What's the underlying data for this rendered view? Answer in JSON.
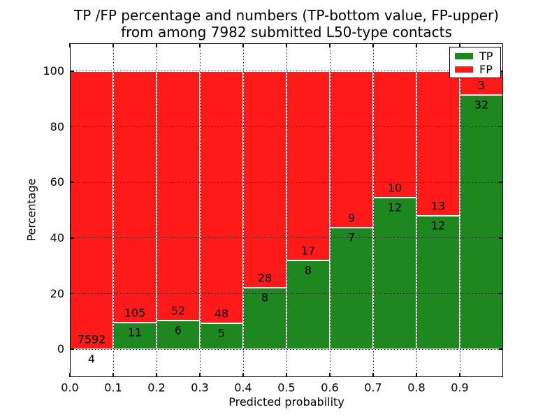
{
  "title": {
    "line1": "TP /FP percentage and numbers (TP-bottom value, FP-upper)",
    "line2": "from among 7982 submitted L50-type contacts"
  },
  "chart_data": {
    "type": "bar",
    "stacked": true,
    "title": "TP /FP percentage and numbers (TP-bottom value, FP-upper) from among 7982 submitted L50-type contacts",
    "xlabel": "Predicted probability",
    "ylabel": "Percentage",
    "xlim": [
      0.0,
      1.0
    ],
    "ylim": [
      -10,
      110
    ],
    "xticks": [
      0.0,
      0.1,
      0.2,
      0.3,
      0.4,
      0.5,
      0.6,
      0.7,
      0.8,
      0.9
    ],
    "xtick_labels": [
      "0.0",
      "0.1",
      "0.2",
      "0.3",
      "0.4",
      "0.5",
      "0.6",
      "0.7",
      "0.8",
      "0.9"
    ],
    "yticks": [
      0,
      20,
      40,
      60,
      80,
      100
    ],
    "ytick_labels": [
      "0",
      "20",
      "40",
      "60",
      "80",
      "100"
    ],
    "grid": "dotted",
    "legend": [
      "TP",
      "FP"
    ],
    "legend_position": "upper right",
    "colors": {
      "tp": "#1f871f",
      "fp": "#ff1a1a"
    },
    "total_submitted": 7982,
    "bins": [
      {
        "range": [
          0.0,
          0.1
        ],
        "tp": 4,
        "fp": 7592,
        "tp_pct": 0.05
      },
      {
        "range": [
          0.1,
          0.2
        ],
        "tp": 11,
        "fp": 105,
        "tp_pct": 9.48
      },
      {
        "range": [
          0.2,
          0.3
        ],
        "tp": 6,
        "fp": 52,
        "tp_pct": 10.34
      },
      {
        "range": [
          0.3,
          0.4
        ],
        "tp": 5,
        "fp": 48,
        "tp_pct": 9.43
      },
      {
        "range": [
          0.4,
          0.5
        ],
        "tp": 8,
        "fp": 28,
        "tp_pct": 22.22
      },
      {
        "range": [
          0.5,
          0.6
        ],
        "tp": 8,
        "fp": 17,
        "tp_pct": 32.0
      },
      {
        "range": [
          0.6,
          0.7
        ],
        "tp": 7,
        "fp": 9,
        "tp_pct": 43.75
      },
      {
        "range": [
          0.7,
          0.8
        ],
        "tp": 12,
        "fp": 10,
        "tp_pct": 54.55
      },
      {
        "range": [
          0.8,
          0.9
        ],
        "tp": 12,
        "fp": 13,
        "tp_pct": 48.0
      },
      {
        "range": [
          0.9,
          1.0
        ],
        "tp": 32,
        "fp": 3,
        "tp_pct": 91.43
      }
    ]
  }
}
